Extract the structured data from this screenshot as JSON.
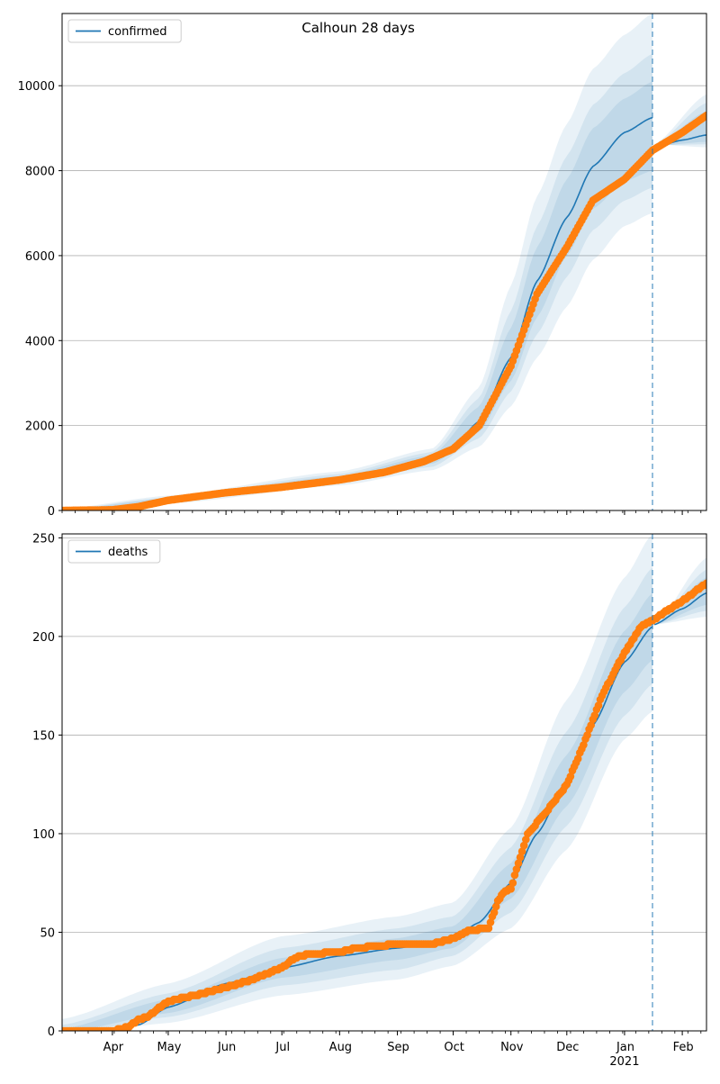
{
  "figure": {
    "title": "Calhoun 28 days"
  },
  "colors": {
    "model_line": "#1f77b4",
    "band": "#1f77b4",
    "observed": "#ff7f0e",
    "grid": "#b0b0b0",
    "forecast_marker": "#1f77b4"
  },
  "chart_data": [
    {
      "type": "line",
      "legend": "confirmed",
      "legend_position": "top-left",
      "grid": "horizontal",
      "x_axis_type": "date",
      "xlim": [
        "2020-03-05",
        "2021-02-14"
      ],
      "ylim": [
        0,
        11700
      ],
      "y_ticks": [
        0,
        2000,
        4000,
        6000,
        8000,
        10000
      ],
      "x_tick_labels_shown": false,
      "forecast_start": "2021-01-16",
      "model": {
        "name": "confirmed",
        "points": [
          [
            "2020-03-05",
            0
          ],
          [
            "2020-04-01",
            20
          ],
          [
            "2020-04-20",
            150
          ],
          [
            "2020-05-01",
            250
          ],
          [
            "2020-06-01",
            430
          ],
          [
            "2020-07-01",
            570
          ],
          [
            "2020-08-01",
            750
          ],
          [
            "2020-09-01",
            950
          ],
          [
            "2020-09-20",
            1200
          ],
          [
            "2020-10-01",
            1500
          ],
          [
            "2020-10-15",
            2100
          ],
          [
            "2020-11-01",
            3600
          ],
          [
            "2020-11-15",
            5400
          ],
          [
            "2020-12-01",
            6900
          ],
          [
            "2020-12-15",
            8100
          ],
          [
            "2021-01-01",
            8900
          ],
          [
            "2021-01-16",
            9250
          ],
          [
            "2021-01-17",
            8550
          ],
          [
            "2021-02-01",
            8720
          ],
          [
            "2021-02-14",
            8840
          ]
        ]
      },
      "band_inner": [
        [
          "2020-03-05",
          -10,
          10
        ],
        [
          "2020-05-01",
          220,
          285
        ],
        [
          "2020-08-01",
          690,
          810
        ],
        [
          "2020-09-20",
          1100,
          1310
        ],
        [
          "2020-10-15",
          1850,
          2450
        ],
        [
          "2020-11-01",
          3050,
          4300
        ],
        [
          "2020-11-15",
          4550,
          6200
        ],
        [
          "2020-12-01",
          6000,
          7800
        ],
        [
          "2020-12-15",
          7100,
          9000
        ],
        [
          "2021-01-01",
          7750,
          9700
        ],
        [
          "2021-01-16",
          8000,
          10100
        ],
        [
          "2021-01-17",
          8580,
          8580
        ],
        [
          "2021-02-14",
          8680,
          9400
        ]
      ],
      "band_mid": [
        [
          "2020-03-05",
          -20,
          20
        ],
        [
          "2020-05-01",
          195,
          310
        ],
        [
          "2020-08-01",
          650,
          860
        ],
        [
          "2020-09-20",
          1030,
          1380
        ],
        [
          "2020-10-15",
          1700,
          2650
        ],
        [
          "2020-11-01",
          2800,
          4700
        ],
        [
          "2020-11-15",
          4150,
          6700
        ],
        [
          "2020-12-01",
          5500,
          8350
        ],
        [
          "2020-12-15",
          6600,
          9550
        ],
        [
          "2021-01-01",
          7300,
          10300
        ],
        [
          "2021-01-16",
          7600,
          10750
        ],
        [
          "2021-01-17",
          8600,
          8600
        ],
        [
          "2021-02-14",
          8620,
          9600
        ]
      ],
      "band_outer": [
        [
          "2020-03-05",
          -40,
          40
        ],
        [
          "2020-05-01",
          160,
          350
        ],
        [
          "2020-08-01",
          590,
          920
        ],
        [
          "2020-09-20",
          950,
          1460
        ],
        [
          "2020-10-15",
          1500,
          2900
        ],
        [
          "2020-11-01",
          2450,
          5300
        ],
        [
          "2020-11-15",
          3600,
          7400
        ],
        [
          "2020-12-01",
          4800,
          9100
        ],
        [
          "2020-12-15",
          5900,
          10400
        ],
        [
          "2021-01-01",
          6700,
          11200
        ],
        [
          "2021-01-16",
          7000,
          11700
        ],
        [
          "2021-01-17",
          8620,
          8620
        ],
        [
          "2021-02-14",
          8550,
          9800
        ]
      ],
      "observed": {
        "name": "observed",
        "points": [
          [
            "2020-03-05",
            0
          ],
          [
            "2020-04-01",
            15
          ],
          [
            "2020-04-15",
            90
          ],
          [
            "2020-05-01",
            240
          ],
          [
            "2020-06-01",
            420
          ],
          [
            "2020-07-01",
            550
          ],
          [
            "2020-08-01",
            720
          ],
          [
            "2020-08-25",
            900
          ],
          [
            "2020-09-15",
            1150
          ],
          [
            "2020-10-01",
            1450
          ],
          [
            "2020-10-15",
            2000
          ],
          [
            "2020-11-01",
            3400
          ],
          [
            "2020-11-15",
            5100
          ],
          [
            "2020-12-01",
            6200
          ],
          [
            "2020-12-15",
            7300
          ],
          [
            "2021-01-01",
            7800
          ],
          [
            "2021-01-16",
            8480
          ],
          [
            "2021-02-01",
            8900
          ],
          [
            "2021-02-14",
            9300
          ]
        ]
      }
    },
    {
      "type": "line",
      "legend": "deaths",
      "legend_position": "top-left",
      "grid": "horizontal",
      "x_axis_type": "date",
      "xlim": [
        "2020-03-05",
        "2021-02-14"
      ],
      "ylim": [
        0,
        252
      ],
      "y_ticks": [
        0,
        50,
        100,
        150,
        200,
        250
      ],
      "x_tick_labels": [
        "Apr",
        "May",
        "Jun",
        "Jul",
        "Aug",
        "Sep",
        "Oct",
        "Nov",
        "Dec",
        "Jan",
        "Feb"
      ],
      "x_tick_dates": [
        "2020-04-01",
        "2020-05-01",
        "2020-06-01",
        "2020-07-01",
        "2020-08-01",
        "2020-09-01",
        "2020-10-01",
        "2020-11-01",
        "2020-12-01",
        "2021-01-01",
        "2021-02-01"
      ],
      "x_tick_sublabel": {
        "date": "2021-01-01",
        "text": "2021"
      },
      "forecast_start": "2021-01-16",
      "model": {
        "name": "deaths",
        "points": [
          [
            "2020-03-05",
            0
          ],
          [
            "2020-04-01",
            0.5
          ],
          [
            "2020-04-15",
            3
          ],
          [
            "2020-05-01",
            12
          ],
          [
            "2020-06-01",
            24
          ],
          [
            "2020-07-01",
            32
          ],
          [
            "2020-08-01",
            38
          ],
          [
            "2020-09-01",
            42
          ],
          [
            "2020-10-01",
            47
          ],
          [
            "2020-10-15",
            55
          ],
          [
            "2020-11-01",
            75
          ],
          [
            "2020-11-15",
            100
          ],
          [
            "2020-12-01",
            127
          ],
          [
            "2020-12-15",
            155
          ],
          [
            "2021-01-01",
            187
          ],
          [
            "2021-01-16",
            205
          ],
          [
            "2021-01-17",
            206
          ],
          [
            "2021-02-01",
            214
          ],
          [
            "2021-02-14",
            222
          ]
        ]
      },
      "band_inner": [
        [
          "2020-03-05",
          -1,
          1
        ],
        [
          "2020-05-01",
          9,
          16
        ],
        [
          "2020-07-01",
          27,
          37
        ],
        [
          "2020-09-01",
          36,
          47
        ],
        [
          "2020-10-01",
          42,
          53
        ],
        [
          "2020-11-01",
          67,
          85
        ],
        [
          "2020-12-01",
          114,
          140
        ],
        [
          "2021-01-01",
          172,
          203
        ],
        [
          "2021-01-16",
          188,
          222
        ],
        [
          "2021-01-17",
          206,
          206
        ],
        [
          "2021-02-14",
          216,
          230
        ]
      ],
      "band_mid": [
        [
          "2020-03-05",
          -2,
          3
        ],
        [
          "2020-05-01",
          7,
          19
        ],
        [
          "2020-07-01",
          23,
          42
        ],
        [
          "2020-09-01",
          31,
          52
        ],
        [
          "2020-10-01",
          38,
          58
        ],
        [
          "2020-11-01",
          60,
          93
        ],
        [
          "2020-12-01",
          104,
          152
        ],
        [
          "2021-01-01",
          160,
          215
        ],
        [
          "2021-01-16",
          176,
          235
        ],
        [
          "2021-01-17",
          206,
          206
        ],
        [
          "2021-02-14",
          213,
          234
        ]
      ],
      "band_outer": [
        [
          "2020-03-05",
          -3,
          6
        ],
        [
          "2020-05-01",
          4,
          24
        ],
        [
          "2020-07-01",
          18,
          48
        ],
        [
          "2020-09-01",
          26,
          58
        ],
        [
          "2020-10-01",
          33,
          65
        ],
        [
          "2020-11-01",
          52,
          103
        ],
        [
          "2020-12-01",
          92,
          168
        ],
        [
          "2021-01-01",
          148,
          230
        ],
        [
          "2021-01-16",
          162,
          252
        ],
        [
          "2021-01-17",
          206,
          206
        ],
        [
          "2021-02-14",
          210,
          240
        ]
      ],
      "observed": {
        "name": "observed",
        "points": [
          [
            "2020-03-05",
            0
          ],
          [
            "2020-04-01",
            0
          ],
          [
            "2020-04-10",
            2
          ],
          [
            "2020-04-15",
            6
          ],
          [
            "2020-04-20",
            7
          ],
          [
            "2020-04-25",
            11
          ],
          [
            "2020-05-01",
            15
          ],
          [
            "2020-05-15",
            18
          ],
          [
            "2020-06-01",
            22
          ],
          [
            "2020-06-15",
            26
          ],
          [
            "2020-07-01",
            32
          ],
          [
            "2020-07-08",
            37
          ],
          [
            "2020-07-15",
            39
          ],
          [
            "2020-08-01",
            40
          ],
          [
            "2020-08-10",
            42
          ],
          [
            "2020-09-01",
            44
          ],
          [
            "2020-09-20",
            44
          ],
          [
            "2020-10-01",
            47
          ],
          [
            "2020-10-10",
            51
          ],
          [
            "2020-10-20",
            52
          ],
          [
            "2020-10-25",
            66
          ],
          [
            "2020-10-28",
            70
          ],
          [
            "2020-11-01",
            72
          ],
          [
            "2020-11-05",
            85
          ],
          [
            "2020-11-10",
            100
          ],
          [
            "2020-11-20",
            111
          ],
          [
            "2020-12-01",
            125
          ],
          [
            "2020-12-10",
            145
          ],
          [
            "2020-12-20",
            170
          ],
          [
            "2021-01-01",
            192
          ],
          [
            "2021-01-10",
            205
          ],
          [
            "2021-01-16",
            208
          ],
          [
            "2021-01-22",
            212
          ],
          [
            "2021-02-01",
            218
          ],
          [
            "2021-02-14",
            227
          ]
        ]
      }
    }
  ]
}
